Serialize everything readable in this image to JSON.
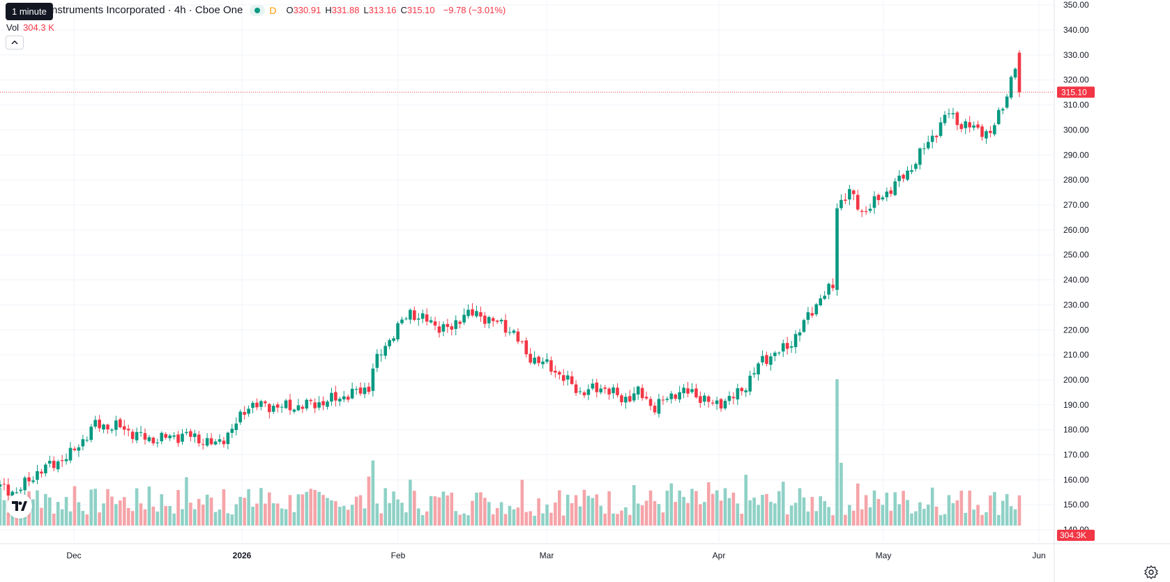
{
  "tooltip": "1 minute",
  "legend": {
    "symbol_title": "Texas Instruments Incorporated · 4h · Cboe One",
    "title_visible": "nstruments Incorporated · 4h · Cboe One",
    "market_status_icon": "market-open-dot-icon",
    "delay_badge": "D",
    "open_label": "O",
    "open": "330.91",
    "high_label": "H",
    "high": "331.88",
    "low_label": "L",
    "low": "313.16",
    "close_label": "C",
    "close": "315.10",
    "change": "−9.78 (−3.01%)"
  },
  "volume_legend": {
    "label": "Vol",
    "value": "304.3 K"
  },
  "collapse_icon": "chevron-up-icon",
  "logo_text": "TV",
  "settings_icon": "gear-icon",
  "colors": {
    "up": "#089981",
    "down": "#f23645",
    "vol_up": "#8fd1c6",
    "vol_down": "#f5a4a9",
    "grid": "#f0f3fa"
  },
  "chart_data": {
    "type": "candlestick",
    "price_axis": {
      "min": 135,
      "max": 352,
      "ticks": [
        350,
        340,
        330,
        320,
        310,
        300,
        290,
        280,
        270,
        260,
        250,
        240,
        230,
        220,
        210,
        200,
        190,
        180,
        170,
        160,
        150,
        140
      ],
      "tick_labels": [
        "350.00",
        "340.00",
        "330.00",
        "320.00",
        "310.00",
        "300.00",
        "290.00",
        "280.00",
        "270.00",
        "260.00",
        "250.00",
        "240.00",
        "230.00",
        "220.00",
        "210.00",
        "200.00",
        "190.00",
        "180.00",
        "170.00",
        "160.00",
        "150.00",
        "140.00"
      ]
    },
    "time_axis_labels": [
      "Dec",
      "2026",
      "Feb",
      "Mar",
      "Apr",
      "May",
      "Jun"
    ],
    "last_price": {
      "value": 315.1,
      "label": "315.10"
    },
    "last_volume_label": "304.3K",
    "anchors": [
      {
        "bar": 0,
        "price": 157
      },
      {
        "bar": 4,
        "price": 155
      },
      {
        "bar": 9,
        "price": 163
      },
      {
        "bar": 17,
        "price": 170
      },
      {
        "bar": 23,
        "price": 182
      },
      {
        "bar": 29,
        "price": 181
      },
      {
        "bar": 36,
        "price": 176
      },
      {
        "bar": 45,
        "price": 178
      },
      {
        "bar": 52,
        "price": 174
      },
      {
        "bar": 56,
        "price": 180
      },
      {
        "bar": 60,
        "price": 190
      },
      {
        "bar": 70,
        "price": 189
      },
      {
        "bar": 78,
        "price": 191
      },
      {
        "bar": 86,
        "price": 195
      },
      {
        "bar": 89,
        "price": 197
      },
      {
        "bar": 90,
        "price": 205
      },
      {
        "bar": 95,
        "price": 219
      },
      {
        "bar": 99,
        "price": 227
      },
      {
        "bar": 105,
        "price": 222
      },
      {
        "bar": 109,
        "price": 220
      },
      {
        "bar": 112,
        "price": 227
      },
      {
        "bar": 117,
        "price": 225
      },
      {
        "bar": 121,
        "price": 222
      },
      {
        "bar": 124,
        "price": 219
      },
      {
        "bar": 127,
        "price": 210
      },
      {
        "bar": 133,
        "price": 205
      },
      {
        "bar": 140,
        "price": 195
      },
      {
        "bar": 146,
        "price": 197
      },
      {
        "bar": 150,
        "price": 192
      },
      {
        "bar": 154,
        "price": 195
      },
      {
        "bar": 158,
        "price": 189
      },
      {
        "bar": 163,
        "price": 195
      },
      {
        "bar": 167,
        "price": 195
      },
      {
        "bar": 172,
        "price": 190
      },
      {
        "bar": 177,
        "price": 193
      },
      {
        "bar": 180,
        "price": 198
      },
      {
        "bar": 184,
        "price": 208
      },
      {
        "bar": 190,
        "price": 213
      },
      {
        "bar": 193,
        "price": 220
      },
      {
        "bar": 198,
        "price": 233
      },
      {
        "bar": 201,
        "price": 237
      },
      {
        "bar": 202,
        "price": 270
      },
      {
        "bar": 205,
        "price": 275
      },
      {
        "bar": 208,
        "price": 267
      },
      {
        "bar": 212,
        "price": 272
      },
      {
        "bar": 219,
        "price": 283
      },
      {
        "bar": 224,
        "price": 295
      },
      {
        "bar": 229,
        "price": 307
      },
      {
        "bar": 232,
        "price": 302
      },
      {
        "bar": 237,
        "price": 300
      },
      {
        "bar": 239,
        "price": 298
      },
      {
        "bar": 242,
        "price": 310
      },
      {
        "bar": 245,
        "price": 325
      },
      {
        "bar": 246,
        "price": 315.1
      }
    ],
    "total_bars": 247
  }
}
